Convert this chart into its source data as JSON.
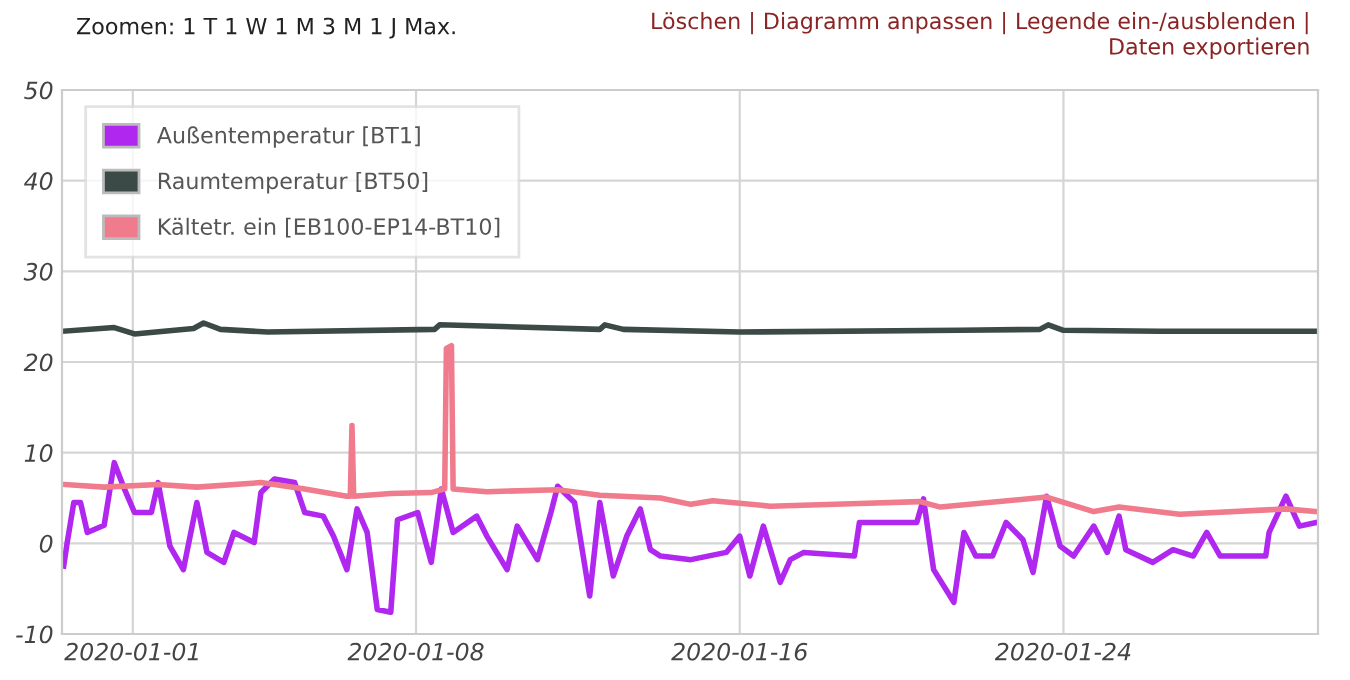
{
  "chart_data": {
    "type": "line",
    "annotations": [
      "Zoomen: 1 T 1 W 1 M 3 M 1 J Max.",
      "Löschen | Diagramm anpassen | Legende ein-/ausblenden | Daten exportieren"
    ],
    "xlim": [
      "2019-12-30T06:00",
      "2020-01-30T07:00"
    ],
    "xticks": [
      "2020-01-01",
      "2020-01-08",
      "2020-01-16",
      "2020-01-24"
    ],
    "ylim": [
      -10,
      50
    ],
    "yticks": [
      -10,
      0,
      10,
      20,
      30,
      40,
      50
    ],
    "grid": true,
    "legend": "top left",
    "marker": "none",
    "line_style": "solid",
    "series": [
      {
        "name": "Außentemperatur [BT1]",
        "color": "#b027f0",
        "x": [
          "2019-12-30T07:00",
          "2019-12-30T09:00",
          "2019-12-30T13:00",
          "2019-12-30T17:00",
          "2019-12-30T21:00",
          "2019-12-31T07:00",
          "2019-12-31T13:00",
          "2019-12-31T19:00",
          "2020-01-01T01:00",
          "2020-01-01T11:00",
          "2020-01-01T15:00",
          "2020-01-01T22:00",
          "2020-01-02T06:00",
          "2020-01-02T14:00",
          "2020-01-02T20:00",
          "2020-01-03T06:00",
          "2020-01-03T12:00",
          "2020-01-04T00:00",
          "2020-01-04T04:00",
          "2020-01-04T12:00",
          "2020-01-05T00:00",
          "2020-01-05T06:00",
          "2020-01-05T17:00",
          "2020-01-05T23:00",
          "2020-01-06T07:00",
          "2020-01-06T13:00",
          "2020-01-06T19:00",
          "2020-01-07T01:00",
          "2020-01-07T09:00",
          "2020-01-07T13:00",
          "2020-01-08T01:00",
          "2020-01-08T09:00",
          "2020-01-08T15:00",
          "2020-01-08T22:00",
          "2020-01-09T12:00",
          "2020-01-09T18:00",
          "2020-01-10T06:00",
          "2020-01-10T12:00",
          "2020-01-11T00:00",
          "2020-01-11T08:00",
          "2020-01-11T12:00",
          "2020-01-11T22:00",
          "2020-01-12T07:00",
          "2020-01-12T13:00",
          "2020-01-12T21:00",
          "2020-01-13T05:00",
          "2020-01-13T13:00",
          "2020-01-13T19:00",
          "2020-01-14T01:00",
          "2020-01-14T19:00",
          "2020-01-15T16:00",
          "2020-01-16T00:00",
          "2020-01-16T06:00",
          "2020-01-16T14:00",
          "2020-01-17T00:00",
          "2020-01-17T06:00",
          "2020-01-17T14:00",
          "2020-01-18T20:00",
          "2020-01-18T23:00",
          "2020-01-20T09:00",
          "2020-01-20T13:00",
          "2020-01-20T19:00",
          "2020-01-21T07:00",
          "2020-01-21T13:00",
          "2020-01-21T20:00",
          "2020-01-22T06:00",
          "2020-01-22T14:00",
          "2020-01-23T00:00",
          "2020-01-23T06:00",
          "2020-01-23T14:00",
          "2020-01-23T22:00",
          "2020-01-24T06:00",
          "2020-01-24T18:00",
          "2020-01-25T02:00",
          "2020-01-25T09:00",
          "2020-01-25T13:00",
          "2020-01-26T05:00",
          "2020-01-26T17:00",
          "2020-01-27T05:00",
          "2020-01-27T13:00",
          "2020-01-27T21:00",
          "2020-01-29T00:00",
          "2020-01-29T02:00",
          "2020-01-29T12:00",
          "2020-01-29T20:00",
          "2020-01-30T06:00"
        ],
        "values": [
          -2.5,
          0,
          4.5,
          4.5,
          1.2,
          2,
          8.9,
          6,
          3.4,
          3.4,
          6.7,
          -0.3,
          -2.9,
          4.5,
          -1,
          -2.1,
          1.2,
          0.1,
          5.6,
          7.1,
          6.7,
          3.4,
          3,
          0.8,
          -2.9,
          3.8,
          1.2,
          -7.3,
          -7.6,
          2.6,
          3.4,
          -2.1,
          6,
          1.2,
          3,
          0.8,
          -2.9,
          1.9,
          -1.8,
          3.4,
          6.3,
          4.5,
          -5.8,
          4.5,
          -3.6,
          0.8,
          3.8,
          -0.7,
          -1.4,
          -1.8,
          -1,
          0.8,
          -3.6,
          1.9,
          -4.3,
          -1.8,
          -1,
          -1.4,
          2.3,
          2.3,
          4.9,
          -2.9,
          -6.5,
          1.2,
          -1.4,
          -1.4,
          2.3,
          0.4,
          -3.2,
          5.2,
          -0.3,
          -1.4,
          1.9,
          -1,
          3,
          -0.7,
          -2.1,
          -0.7,
          -1.4,
          1.2,
          -1.4,
          -1.4,
          1.2,
          5.2,
          1.9,
          2.3
        ]
      },
      {
        "name": "Raumtemperatur [BT50]",
        "color": "#3c4a47",
        "x": [
          "2019-12-30T07:00",
          "2019-12-31T13:00",
          "2020-01-01T01:00",
          "2020-01-02T12:00",
          "2020-01-02T18:00",
          "2020-01-03T04:00",
          "2020-01-04T08:00",
          "2020-01-08T11:00",
          "2020-01-08T14:00",
          "2020-01-12T13:00",
          "2020-01-12T16:00",
          "2020-01-13T03:00",
          "2020-01-16T00:00",
          "2020-01-21T11:00",
          "2020-01-23T10:00",
          "2020-01-23T15:00",
          "2020-01-24T00:00",
          "2020-01-26T09:00",
          "2020-01-30T06:00"
        ],
        "values": [
          23.4,
          23.8,
          23.1,
          23.7,
          24.3,
          23.6,
          23.3,
          23.6,
          24.1,
          23.6,
          24.1,
          23.6,
          23.3,
          23.5,
          23.6,
          24.1,
          23.5,
          23.4,
          23.4
        ]
      },
      {
        "name": "Kältetr. ein [EB100-EP14-BT10]",
        "color": "#f07b8c",
        "x": [
          "2019-12-30T07:00",
          "2019-12-31T07:00",
          "2020-01-01T15:00",
          "2020-01-02T14:00",
          "2020-01-04T04:00",
          "2020-01-05T06:00",
          "2020-01-06T07:00",
          "2020-01-06T09:00",
          "2020-01-06T10:00",
          "2020-01-06T11:00",
          "2020-01-07T09:00",
          "2020-01-08T09:00",
          "2020-01-08T17:00",
          "2020-01-08T18:00",
          "2020-01-08T21:00",
          "2020-01-08T22:00",
          "2020-01-09T18:00",
          "2020-01-11T12:00",
          "2020-01-12T13:00",
          "2020-01-14T01:00",
          "2020-01-14T19:00",
          "2020-01-15T08:00",
          "2020-01-16T18:00",
          "2020-01-18T23:00",
          "2020-01-20T11:00",
          "2020-01-20T23:00",
          "2020-01-23T14:00",
          "2020-01-24T18:00",
          "2020-01-25T09:00",
          "2020-01-26T21:00",
          "2020-01-29T12:00",
          "2020-01-30T06:00"
        ],
        "values": [
          6.5,
          6.2,
          6.5,
          6.2,
          6.7,
          6,
          5.2,
          5.2,
          13,
          5.2,
          5.5,
          5.6,
          6,
          21.5,
          21.8,
          6,
          5.7,
          5.9,
          5.3,
          5,
          4.3,
          4.7,
          4.1,
          4.4,
          4.6,
          4,
          5.1,
          3.5,
          4,
          3.2,
          3.8,
          3.5
        ]
      }
    ]
  }
}
